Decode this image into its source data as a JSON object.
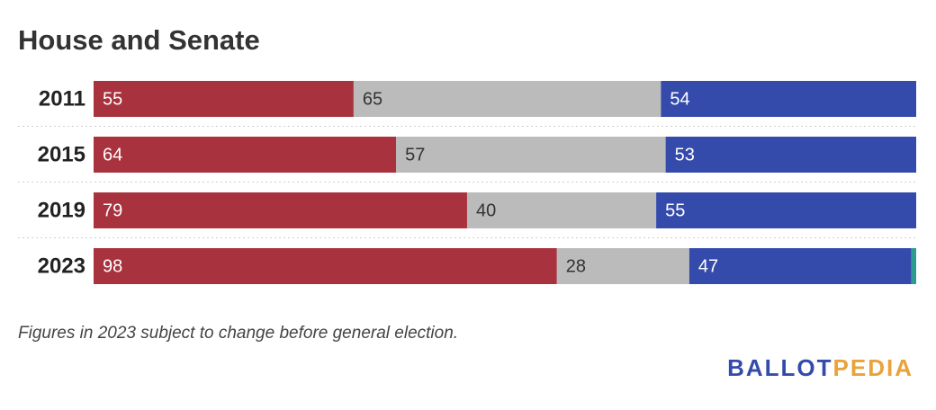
{
  "chart_data": {
    "type": "stacked-bar-horizontal",
    "title": "House and Senate",
    "categories": [
      "2011",
      "2015",
      "2019",
      "2023"
    ],
    "series": [
      {
        "color": "#a8323e",
        "values": [
          55,
          64,
          79,
          98
        ]
      },
      {
        "color": "#bbbbbb",
        "values": [
          65,
          57,
          40,
          28
        ]
      },
      {
        "color": "#344bac",
        "values": [
          54,
          53,
          55,
          47
        ]
      },
      {
        "color": "#2a9d8f",
        "values": [
          null,
          null,
          null,
          1
        ],
        "show_labels": false
      }
    ],
    "xlim": [
      0,
      174
    ],
    "note": "Figures in 2023 subject to change before general election.",
    "logo": [
      "BALLOT",
      "PEDIA"
    ]
  }
}
